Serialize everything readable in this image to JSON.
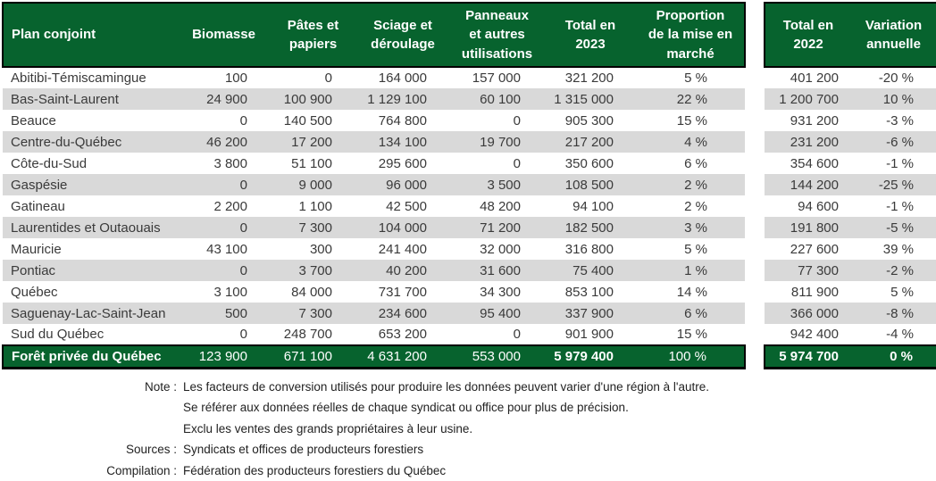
{
  "chart_data": {
    "type": "table",
    "columns": [
      "Plan conjoint",
      "Biomasse",
      "Pâtes et\npapiers",
      "Sciage et\ndéroulage",
      "Panneaux\net autres\nutilisations",
      "Total en\n2023",
      "Proportion\nde la mise en\nmarché",
      "Total en\n2022",
      "Variation\nannuelle"
    ],
    "rows": [
      [
        "Abitibi-Témiscamingue",
        "100",
        "0",
        "164 000",
        "157 000",
        "321 200",
        "5 %",
        "401 200",
        "-20 %"
      ],
      [
        "Bas-Saint-Laurent",
        "24 900",
        "100 900",
        "1 129 100",
        "60 100",
        "1 315 000",
        "22 %",
        "1 200 700",
        "10 %"
      ],
      [
        "Beauce",
        "0",
        "140 500",
        "764 800",
        "0",
        "905 300",
        "15 %",
        "931 200",
        "-3 %"
      ],
      [
        "Centre-du-Québec",
        "46 200",
        "17 200",
        "134 100",
        "19 700",
        "217 200",
        "4 %",
        "231 200",
        "-6 %"
      ],
      [
        "Côte-du-Sud",
        "3 800",
        "51 100",
        "295 600",
        "0",
        "350 600",
        "6 %",
        "354 600",
        "-1 %"
      ],
      [
        "Gaspésie",
        "0",
        "9 000",
        "96 000",
        "3 500",
        "108 500",
        "2 %",
        "144 200",
        "-25 %"
      ],
      [
        "Gatineau",
        "2 200",
        "1 100",
        "42 500",
        "48 200",
        "94 100",
        "2 %",
        "94 600",
        "-1 %"
      ],
      [
        "Laurentides et Outaouais",
        "0",
        "7 300",
        "104 000",
        "71 200",
        "182 500",
        "3 %",
        "191 800",
        "-5 %"
      ],
      [
        "Mauricie",
        "43 100",
        "300",
        "241 400",
        "32 000",
        "316 800",
        "5 %",
        "227 600",
        "39 %"
      ],
      [
        "Pontiac",
        "0",
        "3 700",
        "40 200",
        "31 600",
        "75 400",
        "1 %",
        "77 300",
        "-2 %"
      ],
      [
        "Québec",
        "3 100",
        "84 000",
        "731 700",
        "34 300",
        "853 100",
        "14 %",
        "811 900",
        "5 %"
      ],
      [
        "Saguenay-Lac-Saint-Jean",
        "500",
        "7 300",
        "234 600",
        "95 400",
        "337 900",
        "6 %",
        "366 000",
        "-8 %"
      ],
      [
        "Sud du Québec",
        "0",
        "248 700",
        "653 200",
        "0",
        "901 900",
        "15 %",
        "942 400",
        "-4 %"
      ]
    ],
    "total_row": [
      "Forêt privée du Québec",
      "123 900",
      "671 100",
      "4 631 200",
      "553 000",
      "5 979 400",
      "100 %",
      "5 974 700",
      "0 %"
    ]
  },
  "notes": {
    "lines": [
      {
        "label": "Note :",
        "text": "Les facteurs de conversion utilisés pour produire les données peuvent varier d'une région à l'autre."
      },
      {
        "label": "",
        "text": "Se référer aux données réelles de chaque syndicat ou office pour plus de précision."
      },
      {
        "label": "",
        "text": "Exclu les ventes des grands propriétaires à leur usine."
      },
      {
        "label": "Sources :",
        "text": "Syndicats et offices de producteurs forestiers"
      },
      {
        "label": "Compilation :",
        "text": "Fédération des producteurs forestiers du Québec"
      }
    ]
  },
  "colors": {
    "header_green": "#07632E",
    "stripe_gray": "#D9D9D9",
    "border_black": "#000000",
    "header_text": "#FFFFFF",
    "body_text": "#3A3A3A"
  }
}
